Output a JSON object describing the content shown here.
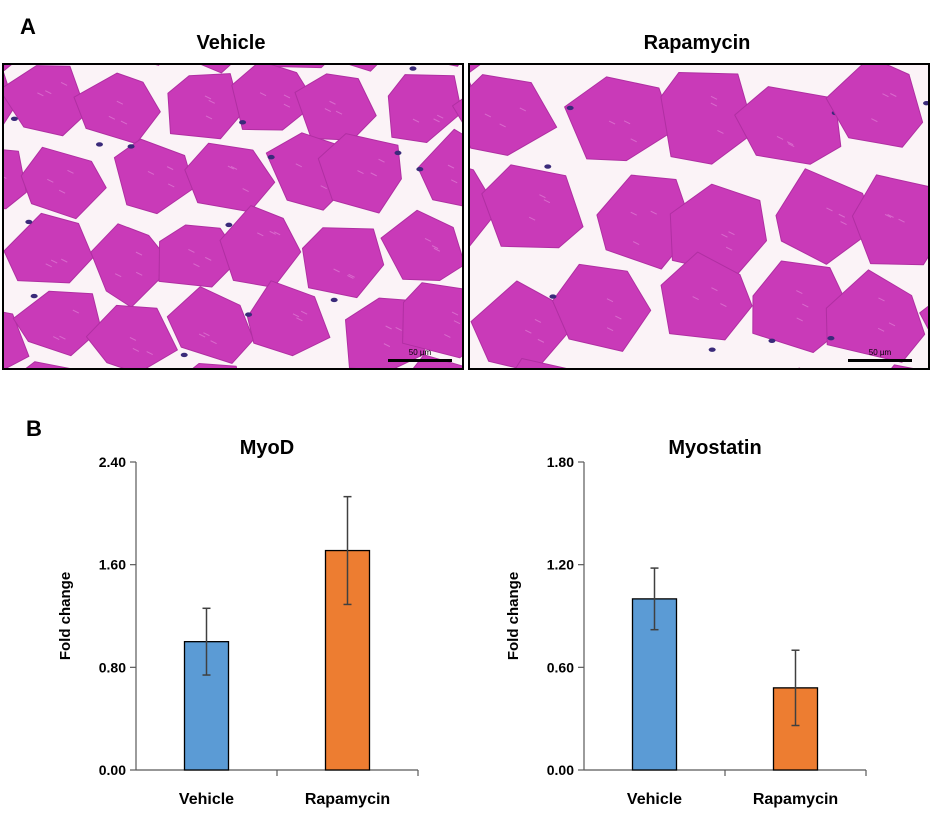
{
  "panel_a": {
    "letter": "A",
    "images": [
      {
        "title": "Vehicle",
        "scale_label": "50 µm"
      },
      {
        "title": "Rapamycin",
        "scale_label": "50 µm"
      }
    ]
  },
  "panel_b": {
    "letter": "B"
  },
  "colors": {
    "vehicle": "#5b9bd5",
    "rapamycin": "#ed7d31",
    "cell": "#c93ab8",
    "background": "#fbf3f7",
    "nucleus": "#3a2a7a"
  },
  "chart_data": [
    {
      "type": "bar",
      "title": "MyoD",
      "ylabel": "Fold change",
      "xlabel": "",
      "categories": [
        "Vehicle",
        "Rapamycin"
      ],
      "values": [
        1.0,
        1.71
      ],
      "errors": [
        0.26,
        0.42
      ],
      "colors": [
        "#5b9bd5",
        "#ed7d31"
      ],
      "ylim": [
        0,
        2.4
      ],
      "yticks": [
        "0.00",
        "0.80",
        "1.60",
        "2.40"
      ],
      "grid": false
    },
    {
      "type": "bar",
      "title": "Myostatin",
      "ylabel": "Fold change",
      "xlabel": "",
      "categories": [
        "Vehicle",
        "Rapamycin"
      ],
      "values": [
        1.0,
        0.48
      ],
      "errors": [
        0.18,
        0.22
      ],
      "colors": [
        "#5b9bd5",
        "#ed7d31"
      ],
      "ylim": [
        0,
        1.8
      ],
      "yticks": [
        "0.00",
        "0.60",
        "1.20",
        "1.80"
      ],
      "grid": false
    }
  ]
}
